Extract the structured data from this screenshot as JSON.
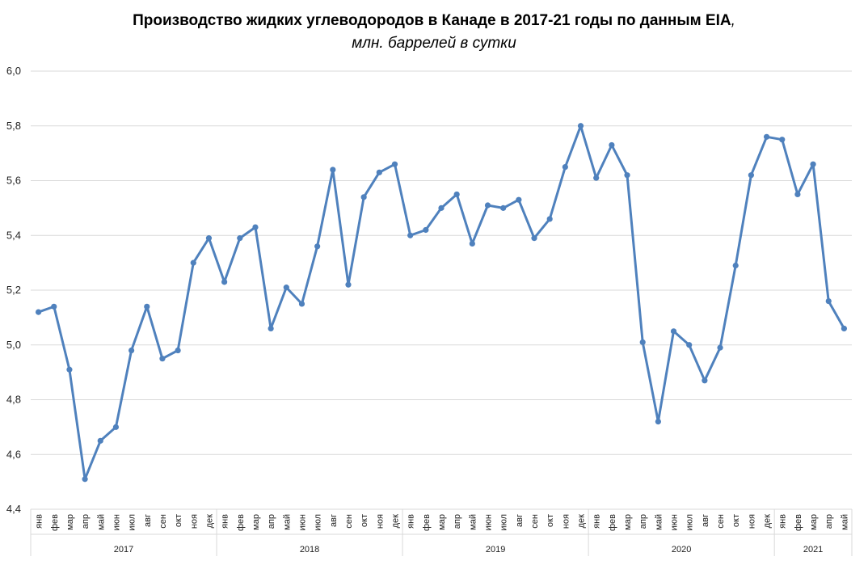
{
  "chart_data": {
    "type": "line",
    "title": "Производство жидких углеводородов в Канаде в 2017-21 годы по данным EIA",
    "title_suffix": ",",
    "subtitle": "млн. баррелей в сутки",
    "xlabel": "",
    "ylabel": "",
    "ylim": [
      4.4,
      6.0
    ],
    "yticks": [
      "4,4",
      "4,6",
      "4,8",
      "5,0",
      "5,2",
      "5,4",
      "5,6",
      "5,8",
      "6,0"
    ],
    "grid": true,
    "line_color": "#4F81BD",
    "grid_color": "#D9D9D9",
    "categories": [
      "янв",
      "фев",
      "мар",
      "апр",
      "май",
      "июн",
      "июл",
      "авг",
      "сен",
      "окт",
      "ноя",
      "дек",
      "янв",
      "фев",
      "мар",
      "апр",
      "май",
      "июн",
      "июл",
      "авг",
      "сен",
      "окт",
      "ноя",
      "дек",
      "янв",
      "фев",
      "мар",
      "апр",
      "май",
      "июн",
      "июл",
      "авг",
      "сен",
      "окт",
      "ноя",
      "дек",
      "янв",
      "фев",
      "мар",
      "апр",
      "май",
      "июн",
      "июл",
      "авг",
      "сен",
      "окт",
      "ноя",
      "дек",
      "янв",
      "фев",
      "мар",
      "апр",
      "май"
    ],
    "year_groups": [
      {
        "label": "2017",
        "count": 12
      },
      {
        "label": "2018",
        "count": 12
      },
      {
        "label": "2019",
        "count": 12
      },
      {
        "label": "2020",
        "count": 12
      },
      {
        "label": "2021",
        "count": 5
      }
    ],
    "series": [
      {
        "values": [
          5.12,
          5.14,
          4.91,
          4.51,
          4.65,
          4.7,
          4.98,
          5.14,
          4.95,
          4.98,
          5.3,
          5.39,
          5.23,
          5.39,
          5.43,
          5.06,
          5.21,
          5.15,
          5.36,
          5.64,
          5.22,
          5.54,
          5.63,
          5.66,
          5.4,
          5.42,
          5.5,
          5.55,
          5.37,
          5.51,
          5.5,
          5.53,
          5.39,
          5.46,
          5.65,
          5.8,
          5.61,
          5.73,
          5.62,
          5.01,
          4.72,
          5.05,
          5.0,
          4.87,
          4.99,
          5.29,
          5.62,
          5.76,
          5.75,
          5.55,
          5.66,
          5.16,
          5.06
        ]
      }
    ]
  }
}
